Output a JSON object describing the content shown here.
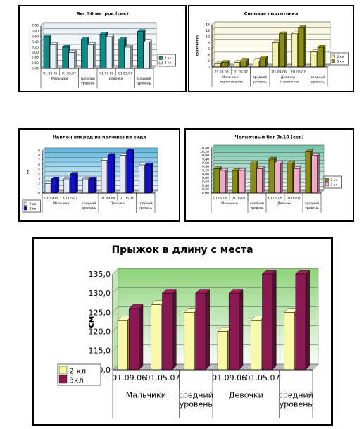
{
  "chart_data": [
    {
      "id": "p1",
      "type": "bar",
      "title": "Бег 30 метров (сек)",
      "ylabel": "",
      "ylim": [
        5.4,
        7.0
      ],
      "yticks": [
        "7,03",
        "6,80",
        "6,60",
        "6,40",
        "6,20",
        "6,00",
        "5,80",
        "5,60",
        "5,40"
      ],
      "x_labels": [
        "01.09.06",
        "01.05.07",
        "",
        "01.09.06",
        "01.05.07",
        ""
      ],
      "groups": [
        "Мальчики",
        "средний уровень",
        "Девочки",
        "средний уровень"
      ],
      "series": [
        {
          "name": "2 кл",
          "color": "#0e8a87",
          "values": [
            6.6,
            6.2,
            6.5,
            6.7,
            6.5,
            6.8
          ]
        },
        {
          "name": "3 кл",
          "color": "#e4f2f8",
          "values": [
            6.3,
            6.0,
            6.3,
            6.6,
            6.2,
            6.4
          ]
        }
      ],
      "legend": "right"
    },
    {
      "id": "p2",
      "type": "bar",
      "title": "Силовая подготовка",
      "ylabel": "количество",
      "ylim": [
        0,
        14
      ],
      "yticks": [
        "14",
        "12",
        "10",
        "8",
        "6",
        "4",
        "2",
        "0"
      ],
      "x_labels": [
        "01.09.06",
        "01.05.07",
        "",
        "01.09.06",
        "01.05.07",
        ""
      ],
      "groups": [
        "Мальчики - подтягивание",
        "средний уровень",
        "Девочки - отжимание",
        "средний уровень"
      ],
      "series": [
        {
          "name": "2 кл",
          "color": "#f4f0a6",
          "values": [
            1,
            1.5,
            2,
            8,
            11,
            5
          ]
        },
        {
          "name": "3 кл",
          "color": "#8c8c1a",
          "values": [
            1.5,
            2,
            3,
            11,
            13,
            6.5
          ]
        }
      ],
      "legend": "right"
    },
    {
      "id": "p3",
      "type": "bar",
      "title": "Наклон вперед из положения сидя",
      "ylabel": "см",
      "ylim": [
        0,
        9
      ],
      "yticks": [
        "9",
        "8",
        "7",
        "6",
        "5",
        "4",
        "3",
        "2",
        "1",
        "0"
      ],
      "x_labels": [
        "01.09.06",
        "01.05.07",
        "",
        "01.09.06",
        "01.05.07",
        ""
      ],
      "groups": [
        "Мальчики",
        "средний уровень",
        "Девочки",
        "средний уровень"
      ],
      "series": [
        {
          "name": "2 кл",
          "color": "#e6e8f8",
          "values": [
            2,
            3,
            3,
            7,
            8,
            6
          ]
        },
        {
          "name": "3 кл",
          "color": "#1010c8",
          "values": [
            3,
            4,
            3,
            8,
            9,
            6
          ]
        }
      ],
      "legend": "left"
    },
    {
      "id": "p4",
      "type": "bar",
      "title": "Челночный бег 3х10 (сек)",
      "ylabel": "",
      "ylim": [
        8.0,
        10.4
      ],
      "yticks": [
        "10,40",
        "10,20",
        "10,00",
        "9,80",
        "9,60",
        "9,40",
        "9,20",
        "9,00",
        "8,80",
        "8,60",
        "8,40",
        "8,20",
        "8,00"
      ],
      "x_labels": [
        "01.09.06",
        "01.05.07",
        "",
        "01.09.06",
        "01.05.07",
        ""
      ],
      "groups": [
        "Мальчики",
        "средний уровень",
        "Девочки",
        "средний уровень"
      ],
      "series": [
        {
          "name": "2 кл",
          "color": "#8a8a1a",
          "values": [
            9.3,
            9.2,
            9.6,
            9.8,
            9.6,
            10.2
          ]
        },
        {
          "name": "3 кл",
          "color": "#f4a8c8",
          "values": [
            9.2,
            9.2,
            9.3,
            9.6,
            9.3,
            10.0
          ]
        }
      ],
      "legend": "right"
    },
    {
      "id": "p5",
      "type": "bar",
      "title": "Прыжок в длину с места",
      "ylabel": "см",
      "ylim": [
        110,
        135
      ],
      "yticks": [
        "135,0",
        "130,0",
        "125,0",
        "120,0",
        "115,0",
        "110,0"
      ],
      "x_labels": [
        "01.09.06",
        "01.05.07",
        "",
        "01.09.06",
        "01.05.07",
        ""
      ],
      "groups": [
        "Мальчики",
        "средний уровень",
        "Девочки",
        "средний уровень"
      ],
      "series": [
        {
          "name": "2 кл",
          "color": "#f8f8a8",
          "values": [
            123,
            127,
            125,
            120,
            123,
            125
          ]
        },
        {
          "name": "3кл",
          "color": "#8b1a52",
          "values": [
            126,
            130,
            130,
            130,
            135,
            135
          ]
        }
      ],
      "legend": "left"
    }
  ]
}
